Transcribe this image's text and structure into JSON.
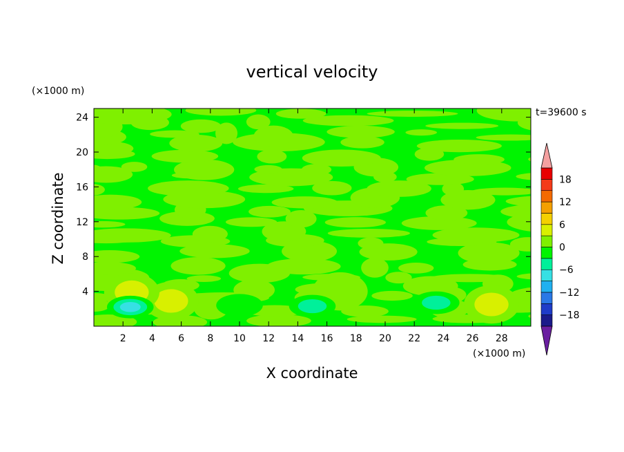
{
  "chart_data": {
    "type": "heatmap",
    "title": "vertical velocity",
    "xlabel": "X coordinate",
    "ylabel": "Z coordinate",
    "x_unit": "(×1000 m)",
    "y_unit": "(×1000 m)",
    "time_label": "t=39600 s",
    "xlim": [
      0,
      30
    ],
    "ylim": [
      0,
      25
    ],
    "xticks": [
      2,
      4,
      6,
      8,
      10,
      12,
      14,
      16,
      18,
      20,
      22,
      24,
      26,
      28
    ],
    "yticks": [
      4,
      8,
      12,
      16,
      20,
      24
    ],
    "colorbar": {
      "levels": [
        -21,
        -18,
        -15,
        -12,
        -9,
        -6,
        -3,
        0,
        3,
        6,
        9,
        12,
        15,
        18,
        21
      ],
      "tick_values": [
        -18,
        -12,
        -6,
        0,
        6,
        12,
        18
      ],
      "tick_labels": [
        "−18",
        "−12",
        "−6",
        "0",
        "6",
        "12",
        "18"
      ],
      "colors": [
        "#6a1fa0",
        "#1b1b8a",
        "#1f3cc8",
        "#2a78e6",
        "#20b0f0",
        "#36e0e4",
        "#00f09a",
        "#00f400",
        "#7ff000",
        "#d8f000",
        "#f4d000",
        "#f4a000",
        "#f46a00",
        "#f43a1a",
        "#e80000",
        "#f4a0a0"
      ],
      "extends": "both"
    },
    "background_level": [
      -3,
      0
    ],
    "features": [
      {
        "kind": "updraft",
        "x": 27.3,
        "z": 2.5,
        "peak": 5
      },
      {
        "kind": "updraft",
        "x": 5.3,
        "z": 2.9,
        "peak": 4
      },
      {
        "kind": "updraft",
        "x": 16.9,
        "z": 4.0,
        "peak": 3
      },
      {
        "kind": "updraft",
        "x": 2.6,
        "z": 3.9,
        "peak": 4
      },
      {
        "kind": "downdraft",
        "x": 2.5,
        "z": 2.2,
        "peak": -7
      },
      {
        "kind": "downdraft",
        "x": 23.5,
        "z": 2.7,
        "peak": -4
      },
      {
        "kind": "downdraft",
        "x": 15.0,
        "z": 2.3,
        "peak": -4
      },
      {
        "kind": "downdraft",
        "x": 10.0,
        "z": 2.4,
        "peak": -3
      }
    ]
  }
}
